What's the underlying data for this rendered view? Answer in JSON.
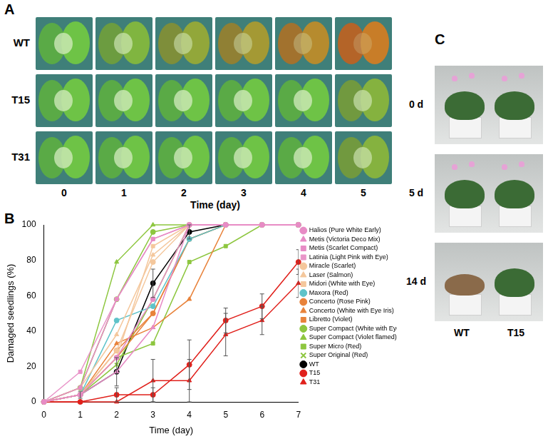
{
  "panel_a": {
    "panel_label": "A",
    "rows": [
      "WT",
      "T15",
      "T31"
    ],
    "columns": [
      "0",
      "1",
      "2",
      "3",
      "4",
      "5"
    ],
    "x_label": "Time (day)"
  },
  "chart_data": {
    "panel_label": "B",
    "type": "line",
    "x_label": "Time (day)",
    "y_label": "Damaged seedlings (%)",
    "x": [
      0,
      1,
      2,
      3,
      4,
      5,
      6,
      7
    ],
    "xlim": [
      0,
      7
    ],
    "xticks": [
      0,
      1,
      2,
      3,
      4,
      5,
      6,
      7
    ],
    "ylim": [
      0,
      100
    ],
    "yticks": [
      0,
      20,
      40,
      60,
      80,
      100
    ],
    "grid": false,
    "legend": "right",
    "series": [
      {
        "name": "Halios (Pure White Early)",
        "color": "#e78bc5",
        "marker": "circle",
        "values": [
          0,
          4,
          25,
          58,
          100,
          100,
          100,
          100
        ]
      },
      {
        "name": "Metis (Victoria Deco Mix)",
        "color": "#e78bc5",
        "marker": "triangle",
        "values": [
          0,
          4,
          17,
          42,
          100,
          100,
          100,
          100
        ]
      },
      {
        "name": "Metis (Scarlet Compact)",
        "color": "#e78bc5",
        "marker": "square",
        "values": [
          0,
          8,
          58,
          92,
          100,
          100,
          100,
          100
        ]
      },
      {
        "name": "Latinia (Light Pink with Eye)",
        "color": "#e995c9",
        "marker": "square",
        "values": [
          0,
          17,
          58,
          92,
          100,
          100,
          100,
          100
        ]
      },
      {
        "name": "Miracle (Scarlet)",
        "color": "#f4c79c",
        "marker": "circle",
        "values": [
          0,
          4,
          29,
          79,
          100,
          100,
          100,
          100
        ]
      },
      {
        "name": "Laser (Salmon)",
        "color": "#f4c79c",
        "marker": "triangle",
        "values": [
          0,
          8,
          38,
          83,
          100,
          100,
          100,
          100
        ]
      },
      {
        "name": "Midori (White with Eye)",
        "color": "#f4c79c",
        "marker": "square",
        "values": [
          0,
          4,
          25,
          88,
          100,
          100,
          100,
          100
        ]
      },
      {
        "name": "Maxora (Red)",
        "color": "#5ec3c9",
        "marker": "circle",
        "values": [
          0,
          4,
          46,
          54,
          92,
          100,
          100,
          100
        ]
      },
      {
        "name": "Concerto (Rose Pink)",
        "color": "#e8823a",
        "marker": "circle",
        "values": [
          0,
          4,
          29,
          50,
          92,
          100,
          100,
          100
        ]
      },
      {
        "name": "Concerto (White with Eye Iris)",
        "color": "#e8823a",
        "marker": "triangle",
        "values": [
          0,
          4,
          33,
          42,
          58,
          100,
          100,
          100
        ]
      },
      {
        "name": "Libretto (Violet)",
        "color": "#e8823a",
        "marker": "square",
        "values": [
          0,
          4,
          25,
          50,
          92,
          100,
          100,
          100
        ]
      },
      {
        "name": "Super Compact (White with Eye)",
        "color": "#8dc63f",
        "marker": "circle",
        "values": [
          0,
          8,
          58,
          96,
          100,
          100,
          100,
          100
        ]
      },
      {
        "name": "Super Compact (Violet flamed)",
        "color": "#8dc63f",
        "marker": "triangle",
        "values": [
          0,
          8,
          79,
          100,
          100,
          100,
          100,
          100
        ]
      },
      {
        "name": "Super Micro (Red)",
        "color": "#8dc63f",
        "marker": "square",
        "values": [
          0,
          4,
          25,
          33,
          79,
          88,
          100,
          100
        ]
      },
      {
        "name": "Super Original (Red)",
        "color": "#8dc63f",
        "marker": "cross",
        "values": [
          0,
          4,
          21,
          58,
          100,
          100,
          100,
          100
        ]
      },
      {
        "name": "WT",
        "color": "#000000",
        "marker": "circle",
        "values": [
          0,
          4,
          17,
          67,
          96,
          100,
          100,
          100
        ],
        "errors": [
          0,
          2,
          8,
          8,
          4,
          0,
          0,
          0
        ]
      },
      {
        "name": "T15",
        "color": "#e0201b",
        "marker": "circle",
        "values": [
          0,
          0,
          4,
          4,
          21,
          46,
          54,
          79
        ],
        "errors": [
          0,
          0,
          4,
          4,
          14,
          7,
          7,
          7
        ]
      },
      {
        "name": "T31",
        "color": "#e0201b",
        "marker": "triangle",
        "values": [
          0,
          0,
          0,
          12,
          12,
          38,
          46,
          67
        ],
        "errors": [
          0,
          0,
          0,
          12,
          12,
          12,
          8,
          8
        ]
      }
    ]
  },
  "panel_c": {
    "panel_label": "C",
    "rows": [
      "0 d",
      "5 d",
      "14 d"
    ],
    "columns": [
      "WT",
      "T15"
    ]
  }
}
